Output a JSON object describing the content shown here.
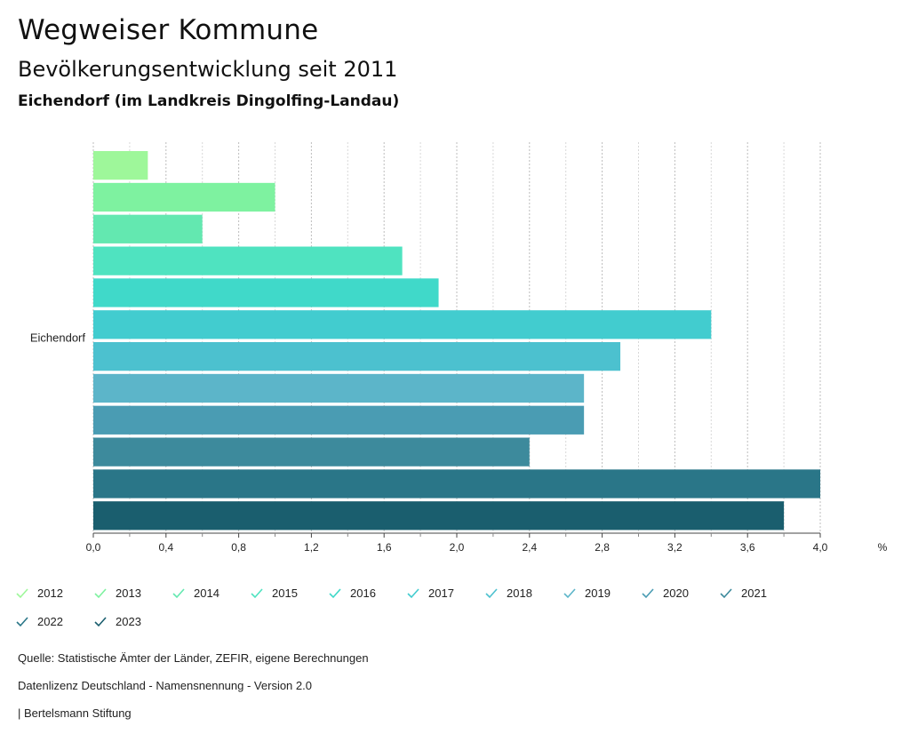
{
  "header": {
    "title": "Wegweiser Kommune",
    "subtitle": "Bevölkerungsentwicklung seit 2011",
    "place": "Eichendorf (im Landkreis Dingolfing-Landau)"
  },
  "chart_data": {
    "type": "bar",
    "orientation": "horizontal",
    "categories": [
      "Eichendorf"
    ],
    "series": [
      {
        "name": "2012",
        "values": [
          0.3
        ],
        "color": "#9ef79a"
      },
      {
        "name": "2013",
        "values": [
          1.0
        ],
        "color": "#7ef2a0"
      },
      {
        "name": "2014",
        "values": [
          0.6
        ],
        "color": "#63e8b0"
      },
      {
        "name": "2015",
        "values": [
          1.7
        ],
        "color": "#4fe3c0"
      },
      {
        "name": "2016",
        "values": [
          1.9
        ],
        "color": "#40d9c9"
      },
      {
        "name": "2017",
        "values": [
          3.4
        ],
        "color": "#42cccf"
      },
      {
        "name": "2018",
        "values": [
          2.9
        ],
        "color": "#4cc1cf"
      },
      {
        "name": "2019",
        "values": [
          2.7
        ],
        "color": "#5cb5c9"
      },
      {
        "name": "2020",
        "values": [
          2.7
        ],
        "color": "#4a9cb3"
      },
      {
        "name": "2021",
        "values": [
          2.4
        ],
        "color": "#3d8a9c"
      },
      {
        "name": "2022",
        "values": [
          4.0
        ],
        "color": "#2a7688"
      },
      {
        "name": "2023",
        "values": [
          3.8
        ],
        "color": "#1a5e6e"
      }
    ],
    "xlim": [
      0,
      4.0
    ],
    "xticks": [
      "0,0",
      "0,4",
      "0,8",
      "1,2",
      "1,6",
      "2,0",
      "2,4",
      "2,8",
      "3,2",
      "3,6",
      "4,0"
    ],
    "xlabel": "%",
    "grid": true,
    "legend_position": "bottom"
  },
  "footer": {
    "source": "Quelle: Statistische Ämter der Länder, ZEFIR, eigene Berechnungen",
    "license": "Datenlizenz Deutschland - Namensnennung - Version 2.0",
    "publisher": "| Bertelsmann Stiftung"
  }
}
